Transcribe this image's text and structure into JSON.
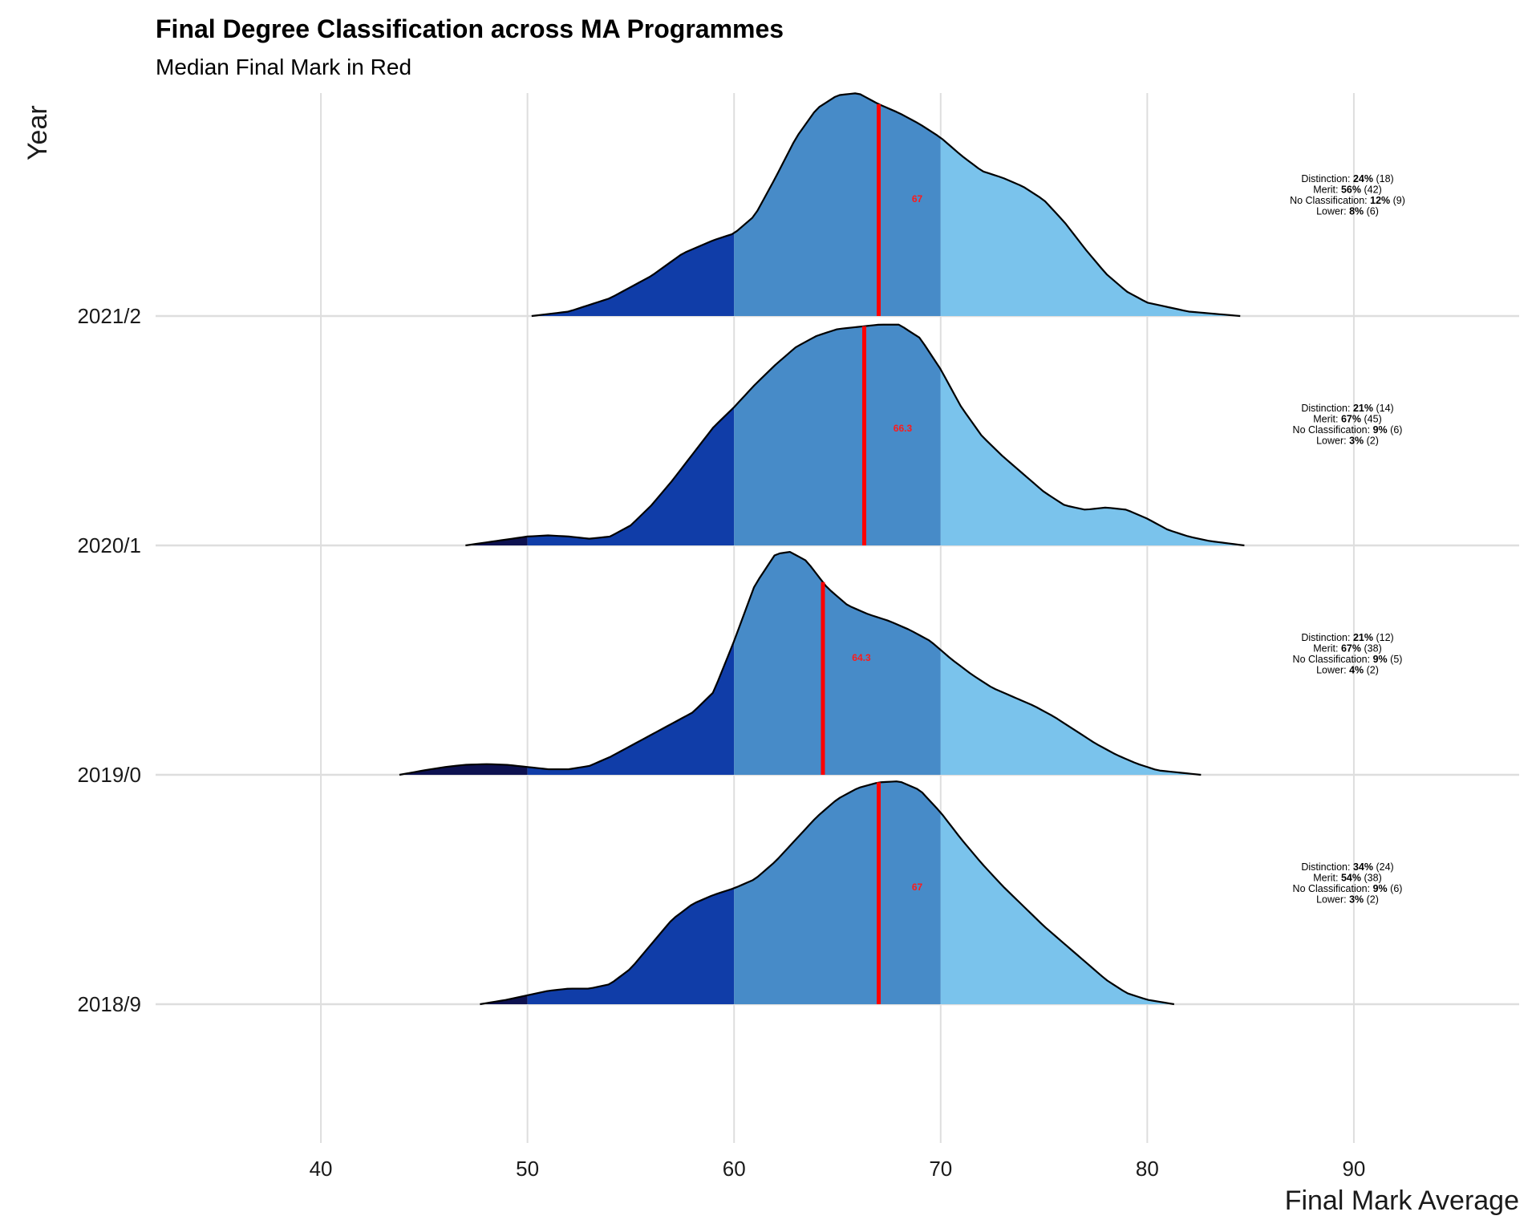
{
  "chart_data": {
    "type": "ridgeline",
    "title": "Final Degree Classification across MA Programmes",
    "subtitle": "Median Final Mark in Red",
    "xlabel": "Final Mark Average",
    "ylabel": "Year",
    "xlim": [
      32,
      98
    ],
    "x_ticks": [
      "40",
      "50",
      "60",
      "70",
      "80",
      "90"
    ],
    "band_boundaries": [
      50,
      60,
      70
    ],
    "band_colors": [
      "#0d1150",
      "#103da8",
      "#478bc8",
      "#7ac3ec"
    ],
    "median_color": "#ff0000",
    "grid": true,
    "rows": [
      {
        "label": "2021/2",
        "median": 67,
        "median_label": "67",
        "annotation": [
          {
            "name": "Distinction",
            "pct": "24%",
            "n": "(18)"
          },
          {
            "name": "Merit",
            "pct": "56%",
            "n": "(42)"
          },
          {
            "name": "No Classification",
            "pct": "12%",
            "n": "(9)"
          },
          {
            "name": "Lower",
            "pct": "8%",
            "n": "(6)"
          }
        ],
        "density": [
          [
            50.2,
            0.0
          ],
          [
            52,
            0.02
          ],
          [
            54,
            0.08
          ],
          [
            56,
            0.18
          ],
          [
            57.5,
            0.28
          ],
          [
            59,
            0.34
          ],
          [
            60,
            0.37
          ],
          [
            61,
            0.45
          ],
          [
            62,
            0.62
          ],
          [
            63,
            0.8
          ],
          [
            64,
            0.93
          ],
          [
            65,
            0.99
          ],
          [
            66,
            1.0
          ],
          [
            67,
            0.95
          ],
          [
            68,
            0.91
          ],
          [
            69,
            0.86
          ],
          [
            70,
            0.8
          ],
          [
            71,
            0.72
          ],
          [
            72,
            0.65
          ],
          [
            73,
            0.62
          ],
          [
            74,
            0.58
          ],
          [
            75,
            0.52
          ],
          [
            76,
            0.42
          ],
          [
            77,
            0.3
          ],
          [
            78,
            0.19
          ],
          [
            79,
            0.11
          ],
          [
            80,
            0.06
          ],
          [
            82,
            0.02
          ],
          [
            84.5,
            0.0
          ]
        ]
      },
      {
        "label": "2020/1",
        "median": 66.3,
        "median_label": "66.3",
        "annotation": [
          {
            "name": "Distinction",
            "pct": "21%",
            "n": "(14)"
          },
          {
            "name": "Merit",
            "pct": "67%",
            "n": "(45)"
          },
          {
            "name": "No Classification",
            "pct": "9%",
            "n": "(6)"
          },
          {
            "name": "Lower",
            "pct": "3%",
            "n": "(2)"
          }
        ],
        "density": [
          [
            47,
            0.0
          ],
          [
            48.5,
            0.02
          ],
          [
            50,
            0.04
          ],
          [
            51,
            0.045
          ],
          [
            52,
            0.04
          ],
          [
            53,
            0.03
          ],
          [
            54,
            0.04
          ],
          [
            55,
            0.09
          ],
          [
            56,
            0.18
          ],
          [
            57,
            0.29
          ],
          [
            58,
            0.41
          ],
          [
            59,
            0.53
          ],
          [
            60,
            0.62
          ],
          [
            61,
            0.72
          ],
          [
            62,
            0.81
          ],
          [
            63,
            0.89
          ],
          [
            64,
            0.94
          ],
          [
            65,
            0.97
          ],
          [
            66,
            0.98
          ],
          [
            67,
            0.99
          ],
          [
            68,
            0.99
          ],
          [
            69,
            0.93
          ],
          [
            70,
            0.79
          ],
          [
            71,
            0.62
          ],
          [
            72,
            0.49
          ],
          [
            73,
            0.4
          ],
          [
            74,
            0.32
          ],
          [
            75,
            0.24
          ],
          [
            76,
            0.18
          ],
          [
            77,
            0.16
          ],
          [
            78,
            0.17
          ],
          [
            79,
            0.16
          ],
          [
            80,
            0.12
          ],
          [
            81,
            0.07
          ],
          [
            82,
            0.04
          ],
          [
            83,
            0.02
          ],
          [
            84.7,
            0.0
          ]
        ]
      },
      {
        "label": "2019/0",
        "median": 64.3,
        "median_label": "64.3",
        "annotation": [
          {
            "name": "Distinction",
            "pct": "21%",
            "n": "(12)"
          },
          {
            "name": "Merit",
            "pct": "67%",
            "n": "(38)"
          },
          {
            "name": "No Classification",
            "pct": "9%",
            "n": "(5)"
          },
          {
            "name": "Lower",
            "pct": "4%",
            "n": "(2)"
          }
        ],
        "density": [
          [
            43.8,
            0.0
          ],
          [
            45,
            0.02
          ],
          [
            46,
            0.035
          ],
          [
            47,
            0.045
          ],
          [
            48,
            0.048
          ],
          [
            49,
            0.045
          ],
          [
            50,
            0.035
          ],
          [
            51,
            0.025
          ],
          [
            52,
            0.025
          ],
          [
            53,
            0.04
          ],
          [
            54,
            0.08
          ],
          [
            55,
            0.13
          ],
          [
            56,
            0.18
          ],
          [
            57,
            0.23
          ],
          [
            58,
            0.28
          ],
          [
            59,
            0.37
          ],
          [
            60,
            0.6
          ],
          [
            61,
            0.85
          ],
          [
            62,
            0.99
          ],
          [
            62.7,
            1.0
          ],
          [
            63.5,
            0.96
          ],
          [
            64.5,
            0.84
          ],
          [
            65.5,
            0.76
          ],
          [
            66.5,
            0.72
          ],
          [
            67.5,
            0.69
          ],
          [
            68.5,
            0.65
          ],
          [
            69.5,
            0.6
          ],
          [
            70.5,
            0.52
          ],
          [
            71.5,
            0.45
          ],
          [
            72.5,
            0.39
          ],
          [
            73.5,
            0.35
          ],
          [
            74.5,
            0.31
          ],
          [
            75.5,
            0.26
          ],
          [
            76.5,
            0.2
          ],
          [
            77.5,
            0.14
          ],
          [
            78.5,
            0.09
          ],
          [
            79.5,
            0.05
          ],
          [
            80.5,
            0.02
          ],
          [
            82.6,
            0.0
          ]
        ]
      },
      {
        "label": "2018/9",
        "median": 67,
        "median_label": "67",
        "annotation": [
          {
            "name": "Distinction",
            "pct": "34%",
            "n": "(24)"
          },
          {
            "name": "Merit",
            "pct": "54%",
            "n": "(38)"
          },
          {
            "name": "No Classification",
            "pct": "9%",
            "n": "(6)"
          },
          {
            "name": "Lower",
            "pct": "3%",
            "n": "(2)"
          }
        ],
        "density": [
          [
            47.7,
            0.0
          ],
          [
            49,
            0.02
          ],
          [
            50,
            0.04
          ],
          [
            51,
            0.06
          ],
          [
            52,
            0.07
          ],
          [
            53,
            0.07
          ],
          [
            54,
            0.09
          ],
          [
            55,
            0.16
          ],
          [
            56,
            0.27
          ],
          [
            57,
            0.38
          ],
          [
            58,
            0.45
          ],
          [
            59,
            0.49
          ],
          [
            60,
            0.52
          ],
          [
            61,
            0.56
          ],
          [
            62,
            0.64
          ],
          [
            63,
            0.74
          ],
          [
            64,
            0.84
          ],
          [
            65,
            0.92
          ],
          [
            66,
            0.97
          ],
          [
            67,
            0.995
          ],
          [
            68,
            1.0
          ],
          [
            69,
            0.96
          ],
          [
            70,
            0.86
          ],
          [
            71,
            0.74
          ],
          [
            72,
            0.63
          ],
          [
            73,
            0.53
          ],
          [
            74,
            0.44
          ],
          [
            75,
            0.35
          ],
          [
            76,
            0.27
          ],
          [
            77,
            0.19
          ],
          [
            78,
            0.11
          ],
          [
            79,
            0.05
          ],
          [
            80,
            0.02
          ],
          [
            81.3,
            0.0
          ]
        ]
      }
    ]
  }
}
